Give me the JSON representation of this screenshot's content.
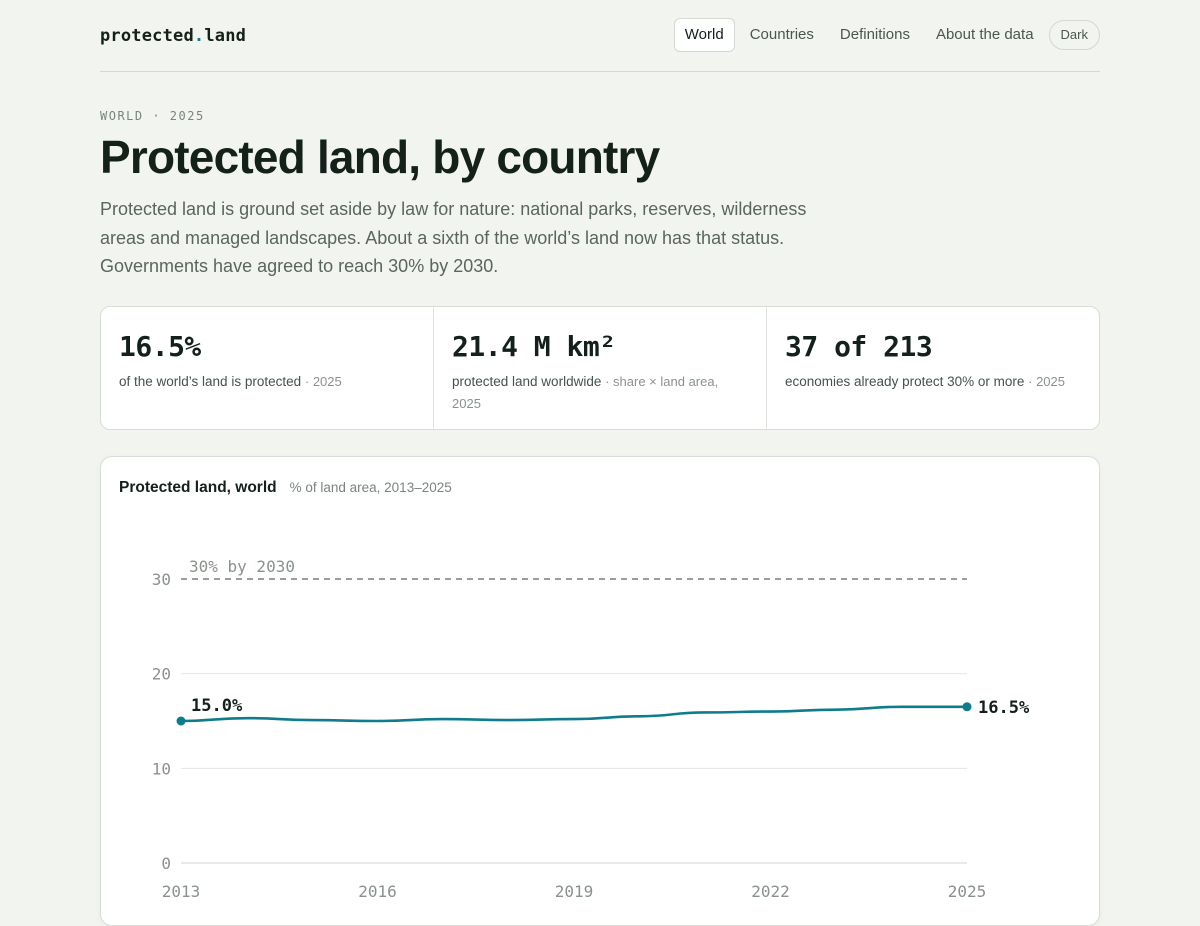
{
  "header": {
    "logo_main": "protected",
    "logo_dot": ".",
    "logo_tail": "land",
    "nav": [
      {
        "label": "World",
        "active": true
      },
      {
        "label": "Countries",
        "active": false
      },
      {
        "label": "Definitions",
        "active": false
      },
      {
        "label": "About the data",
        "active": false
      }
    ],
    "theme_toggle": "Dark"
  },
  "intro": {
    "eyebrow": "WORLD · 2025",
    "title": "Protected land, by country",
    "lede": "Protected land is ground set aside by law for nature: national parks, reserves, wilderness areas and managed landscapes. About a sixth of the world’s land now has that status. Governments have agreed to reach 30% by 2030."
  },
  "stats": [
    {
      "value": "16.5%",
      "desc": "of the world’s land is protected",
      "meta": "· 2025"
    },
    {
      "value": "21.4 M km²",
      "desc": "protected land worldwide",
      "meta": "· share × land area, 2025"
    },
    {
      "value": "37 of 213",
      "desc": "economies already protect 30% or more",
      "meta": "· 2025"
    }
  ],
  "chart": {
    "title": "Protected land, world",
    "subtitle": "% of land area, 2013–2025"
  },
  "colors": {
    "accent": "#0f7c8c",
    "line": "#0f7c8c"
  },
  "chart_data": {
    "type": "line",
    "title": "Protected land, world",
    "subtitle": "% of land area, 2013–2025",
    "x": [
      2013,
      2014,
      2015,
      2016,
      2017,
      2018,
      2019,
      2020,
      2021,
      2022,
      2023,
      2024,
      2025
    ],
    "series": [
      {
        "values": [
          15.0,
          15.3,
          15.1,
          15.0,
          15.2,
          15.1,
          15.2,
          15.5,
          15.9,
          16.0,
          16.2,
          16.5,
          16.5
        ]
      }
    ],
    "xticks": [
      2013,
      2016,
      2019,
      2022,
      2025
    ],
    "yticks": [
      0,
      10,
      20,
      30
    ],
    "ylim": [
      0,
      30
    ],
    "xlim": [
      2013,
      2025
    ],
    "grid": true,
    "target": {
      "value": 30,
      "label": "30% by 2030"
    },
    "start_label": "15.0%",
    "end_label": "16.5%"
  }
}
